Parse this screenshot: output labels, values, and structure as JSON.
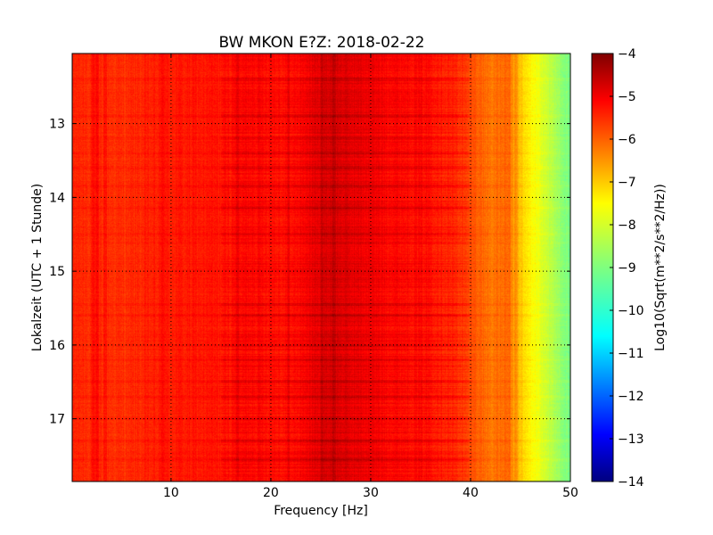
{
  "chart_data": {
    "type": "heatmap",
    "title": "BW MKON E?Z: 2018-02-22",
    "xlabel": "Frequency [Hz]",
    "ylabel": "Lokalzeit (UTC + 1 Stunde)",
    "xlim": [
      0.1,
      50
    ],
    "ylim": [
      17.85,
      12.05
    ],
    "x_ticks": [
      10,
      20,
      30,
      40,
      50
    ],
    "y_ticks": [
      13,
      14,
      15,
      16,
      17
    ],
    "grid": true,
    "colormap": "jet",
    "colorbar": {
      "label": "Log10(Sqrt(m**2/s**2/Hz))",
      "range": [
        -14,
        -4
      ],
      "ticks": [
        -4,
        -5,
        -6,
        -7,
        -8,
        -9,
        -10,
        -11,
        -12,
        -13,
        -14
      ]
    },
    "frequency_profile": {
      "frequency_hz": [
        0,
        5,
        10,
        15,
        18,
        22,
        24,
        26,
        28,
        32,
        36,
        39,
        40,
        42,
        43.5,
        44.5,
        45.5,
        47,
        48.5,
        50
      ],
      "log_amplitude": [
        -5.6,
        -5.7,
        -5.5,
        -5.45,
        -5.25,
        -5.4,
        -5.1,
        -4.85,
        -5.0,
        -5.25,
        -5.35,
        -5.7,
        -6.0,
        -6.4,
        -6.3,
        -6.9,
        -7.5,
        -8.0,
        -8.6,
        -9.1
      ]
    },
    "line_features_hz": [
      2.2,
      2.6,
      3.4,
      9.2,
      16.6,
      21.8,
      25.1,
      26.3,
      43.9,
      44.6
    ],
    "time_banding_h": [
      12.4,
      12.9,
      13.2,
      13.4,
      13.6,
      13.85,
      14.15,
      14.5,
      15.45,
      15.6,
      16.0,
      16.2,
      16.5,
      16.7,
      17.0,
      17.3,
      17.55
    ]
  },
  "colors": {
    "colormap_stops": [
      "#00007f",
      "#0000ff",
      "#007fff",
      "#00ffff",
      "#7fff7f",
      "#ffff00",
      "#ff7f00",
      "#ff0000",
      "#7f0000"
    ]
  }
}
